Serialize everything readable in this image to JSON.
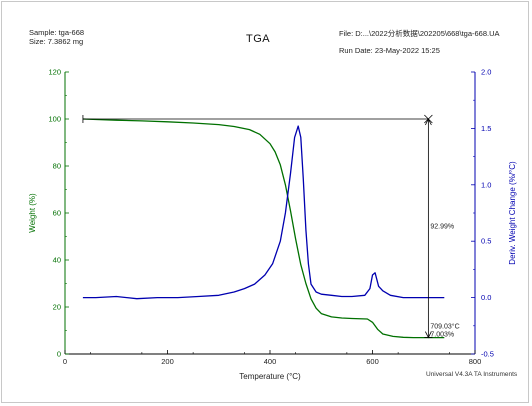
{
  "header": {
    "sample_line": "Sample: tga-668",
    "size_line": "Size:  7.3862 mg",
    "title": "TGA",
    "file_line": "File: D:...\\2022分析数据\\202205\\668\\tga-668.UA",
    "run_date_line": "Run Date: 23-May-2022 15:25"
  },
  "footer": "Universal V4.3A TA Instruments",
  "colors": {
    "weight_series": "#007000",
    "deriv_series": "#0000b0",
    "left_axis": "#007000",
    "right_axis": "#0000b0",
    "annotation": "#000000"
  },
  "chart_data": {
    "type": "line",
    "title": "TGA",
    "xlabel": "Temperature (°C)",
    "ylabel_left": "Weight (%)",
    "ylabel_right": "Deriv. Weight Change (%/°C)",
    "xlim": [
      0,
      800
    ],
    "ylim_left": [
      0,
      120
    ],
    "ylim_right": [
      -0.5,
      2.0
    ],
    "x_ticks": [
      0,
      200,
      400,
      600,
      800
    ],
    "y_left_ticks": [
      0,
      20,
      40,
      60,
      80,
      100,
      120
    ],
    "y_right_ticks": [
      "-0.5",
      "0.0",
      "0.5",
      "1.0",
      "1.5",
      "2.0"
    ],
    "grid": false,
    "series": [
      {
        "name": "Weight (%)",
        "axis": "left",
        "x": [
          35,
          100,
          150,
          200,
          250,
          300,
          330,
          360,
          380,
          400,
          410,
          420,
          430,
          440,
          450,
          460,
          470,
          480,
          490,
          500,
          520,
          540,
          560,
          590,
          600,
          610,
          620,
          640,
          660,
          680,
          700,
          740
        ],
        "y": [
          100,
          99.5,
          99.2,
          98.8,
          98.3,
          97.6,
          96.8,
          95.5,
          93.5,
          89.5,
          86,
          80.5,
          72,
          61,
          49,
          38,
          30,
          23.5,
          19.5,
          17.2,
          15.8,
          15.3,
          15.1,
          14.9,
          13.5,
          10.5,
          8.5,
          7.5,
          7.1,
          7.0,
          7.0,
          7.0
        ]
      },
      {
        "name": "Deriv. Weight Change (%/°C)",
        "axis": "right",
        "x": [
          35,
          60,
          100,
          140,
          180,
          220,
          260,
          300,
          330,
          350,
          370,
          390,
          405,
          420,
          430,
          440,
          448,
          455,
          460,
          465,
          470,
          475,
          480,
          490,
          500,
          520,
          540,
          560,
          585,
          595,
          600,
          605,
          612,
          620,
          635,
          660,
          700,
          740
        ],
        "y": [
          0.0,
          0.0,
          0.01,
          -0.01,
          0.0,
          0.0,
          0.01,
          0.02,
          0.05,
          0.08,
          0.12,
          0.2,
          0.3,
          0.5,
          0.75,
          1.1,
          1.42,
          1.52,
          1.42,
          1.05,
          0.6,
          0.3,
          0.12,
          0.05,
          0.03,
          0.02,
          0.01,
          0.01,
          0.02,
          0.08,
          0.2,
          0.22,
          0.1,
          0.06,
          0.02,
          0.0,
          0.0,
          0.0
        ]
      }
    ],
    "annotations": [
      {
        "type": "weight_step",
        "x": 709.03,
        "y_top": 100,
        "y_bottom": 7.003,
        "label": "92.99%"
      },
      {
        "type": "point_label",
        "x": 709.03,
        "y": 7.003,
        "line1": "709.03°C",
        "line2": "7.003%"
      }
    ]
  }
}
